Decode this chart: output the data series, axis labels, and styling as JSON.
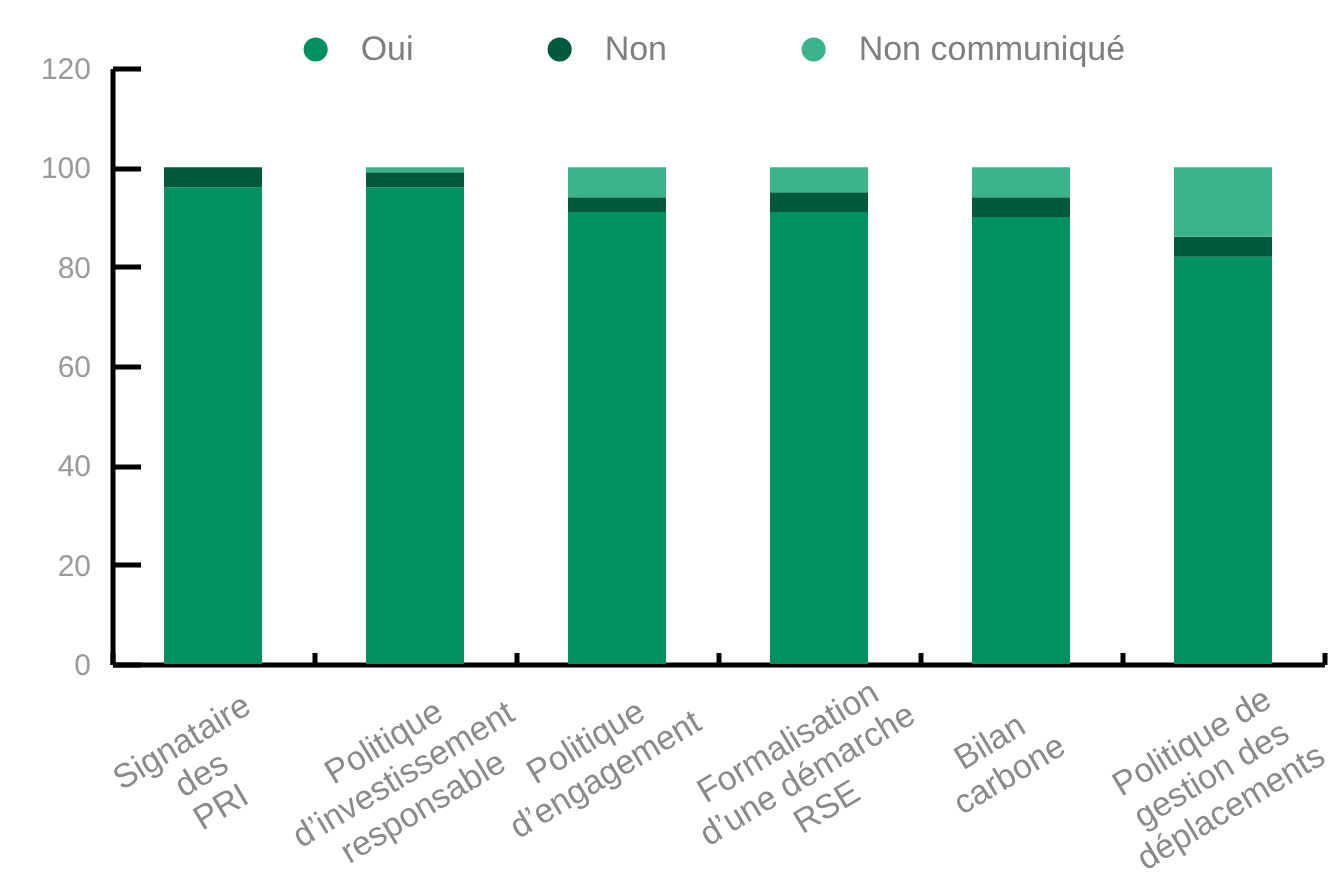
{
  "chart_data": {
    "type": "bar",
    "stacked": true,
    "legend": "top",
    "categories": [
      "Signataire\ndes\nPRI",
      "Politique\nd’investissement\nresponsable",
      "Politique\nd’engagement",
      "Formalisation\nd’une démarche\nRSE",
      "Bilan\ncarbone",
      "Politique de\ngestion des\ndéplacements"
    ],
    "series": [
      {
        "name": "Oui",
        "color": "#00915f",
        "values": [
          96,
          96,
          91,
          91,
          90,
          82
        ]
      },
      {
        "name": "Non",
        "color": "#005a3a",
        "values": [
          4,
          3,
          3,
          4,
          4,
          4
        ]
      },
      {
        "name": "Non communiqué",
        "color": "#3cb38c",
        "values": [
          null,
          1,
          6,
          5,
          6,
          14
        ]
      }
    ],
    "ylim": [
      0,
      120
    ],
    "yticks": [
      0,
      20,
      40,
      60,
      80,
      100,
      120
    ]
  }
}
